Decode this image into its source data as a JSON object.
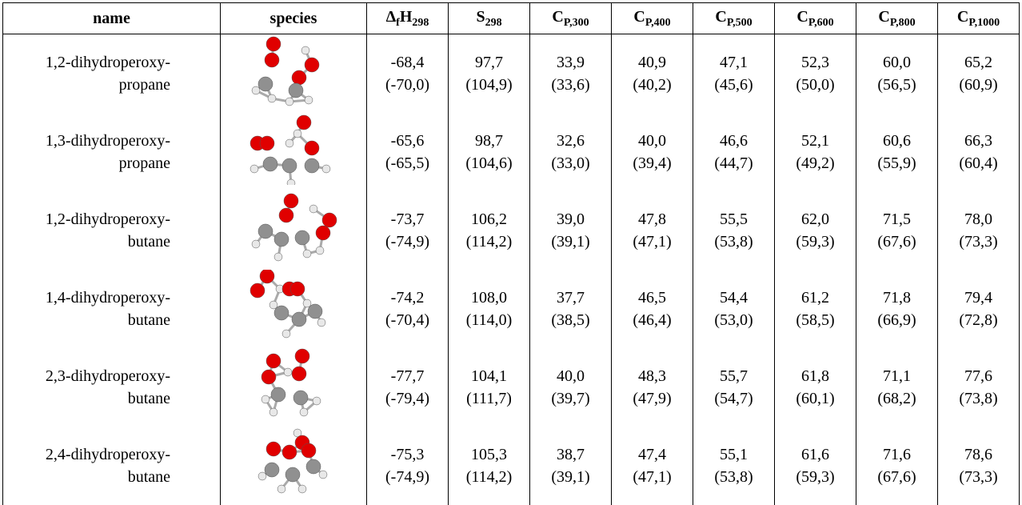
{
  "table": {
    "header": [
      {
        "parts": [
          {
            "text": "name"
          }
        ]
      },
      {
        "parts": [
          {
            "text": "species"
          }
        ]
      },
      {
        "parts": [
          {
            "text": "Δ"
          },
          {
            "sub": "f"
          },
          {
            "text": "H"
          },
          {
            "sub": "298"
          }
        ]
      },
      {
        "parts": [
          {
            "text": "S"
          },
          {
            "sub": "298"
          }
        ]
      },
      {
        "parts": [
          {
            "text": "C"
          },
          {
            "sub": "P,300"
          }
        ]
      },
      {
        "parts": [
          {
            "text": "C"
          },
          {
            "sub": "P,400"
          }
        ]
      },
      {
        "parts": [
          {
            "text": "C"
          },
          {
            "sub": "P,500"
          }
        ]
      },
      {
        "parts": [
          {
            "text": "C"
          },
          {
            "sub": "P,600"
          }
        ]
      },
      {
        "parts": [
          {
            "text": "C"
          },
          {
            "sub": "P,800"
          }
        ]
      },
      {
        "parts": [
          {
            "text": "C"
          },
          {
            "sub": "P,1000"
          }
        ]
      }
    ],
    "rows": [
      {
        "name": [
          "1,2-dihydroperoxy-",
          "propane"
        ],
        "values": [
          [
            "-68,4",
            "(-70,0)"
          ],
          [
            "97,7",
            "(104,9)"
          ],
          [
            "33,9",
            "(33,6)"
          ],
          [
            "40,9",
            "(40,2)"
          ],
          [
            "47,1",
            "(45,6)"
          ],
          [
            "52,3",
            "(50,0)"
          ],
          [
            "60,0",
            "(56,5)"
          ],
          [
            "65,2",
            "(60,9)"
          ]
        ]
      },
      {
        "name": [
          "1,3-dihydroperoxy-",
          "propane"
        ],
        "values": [
          [
            "-65,6",
            "(-65,5)"
          ],
          [
            "98,7",
            "(104,6)"
          ],
          [
            "32,6",
            "(33,0)"
          ],
          [
            "40,0",
            "(39,4)"
          ],
          [
            "46,6",
            "(44,7)"
          ],
          [
            "52,1",
            "(49,2)"
          ],
          [
            "60,6",
            "(55,9)"
          ],
          [
            "66,3",
            "(60,4)"
          ]
        ]
      },
      {
        "name": [
          "1,2-dihydroperoxy-",
          "butane"
        ],
        "values": [
          [
            "-73,7",
            "(-74,9)"
          ],
          [
            "106,2",
            "(114,2)"
          ],
          [
            "39,0",
            "(39,1)"
          ],
          [
            "47,8",
            "(47,1)"
          ],
          [
            "55,5",
            "(53,8)"
          ],
          [
            "62,0",
            "(59,3)"
          ],
          [
            "71,5",
            "(67,6)"
          ],
          [
            "78,0",
            "(73,3)"
          ]
        ]
      },
      {
        "name": [
          "1,4-dihydroperoxy-",
          "butane"
        ],
        "values": [
          [
            "-74,2",
            "(-70,4)"
          ],
          [
            "108,0",
            "(114,0)"
          ],
          [
            "37,7",
            "(38,5)"
          ],
          [
            "46,5",
            "(46,4)"
          ],
          [
            "54,4",
            "(53,0)"
          ],
          [
            "61,2",
            "(58,5)"
          ],
          [
            "71,8",
            "(66,9)"
          ],
          [
            "79,4",
            "(72,8)"
          ]
        ]
      },
      {
        "name": [
          "2,3-dihydroperoxy-",
          "butane"
        ],
        "values": [
          [
            "-77,7",
            "(-79,4)"
          ],
          [
            "104,1",
            "(111,7)"
          ],
          [
            "40,0",
            "(39,7)"
          ],
          [
            "48,3",
            "(47,9)"
          ],
          [
            "55,7",
            "(54,7)"
          ],
          [
            "61,8",
            "(60,1)"
          ],
          [
            "71,1",
            "(68,2)"
          ],
          [
            "77,6",
            "(73,8)"
          ]
        ]
      },
      {
        "name": [
          "2,4-dihydroperoxy-",
          "butane"
        ],
        "values": [
          [
            "-75,3",
            "(-74,9)"
          ],
          [
            "105,3",
            "(114,2)"
          ],
          [
            "38,7",
            "(39,1)"
          ],
          [
            "47,4",
            "(47,1)"
          ],
          [
            "55,1",
            "(53,8)"
          ],
          [
            "61,6",
            "(59,3)"
          ],
          [
            "71,6",
            "(67,6)"
          ],
          [
            "78,6",
            "(73,3)"
          ]
        ]
      }
    ]
  }
}
